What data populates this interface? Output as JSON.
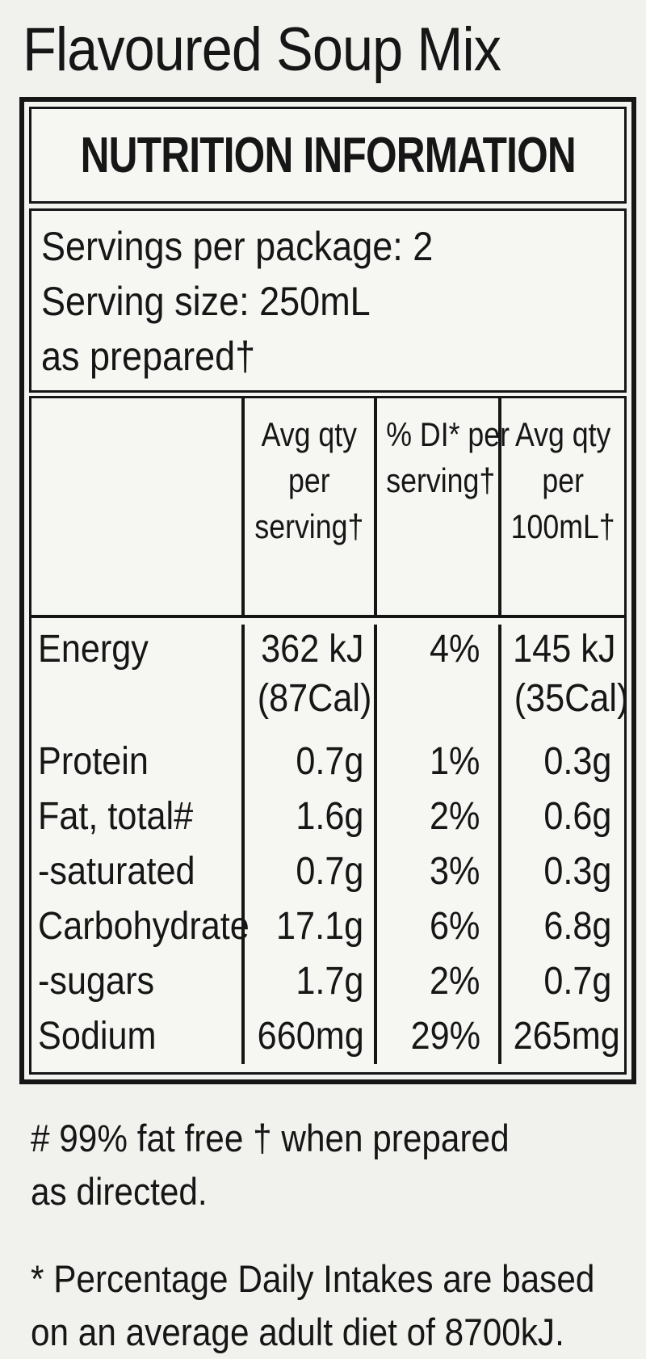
{
  "title": "Flavoured Soup Mix",
  "panel": {
    "header": "NUTRITION INFORMATION",
    "servings_lines": [
      "Servings per package: 2",
      "Serving size: 250mL",
      "as prepared†"
    ],
    "col_headers": {
      "qty_serving": [
        "Avg qty",
        "per",
        "serving†"
      ],
      "di_serving": [
        "% DI* per",
        "serving†"
      ],
      "qty_100ml": [
        "Avg qty",
        "per",
        "100mL†"
      ]
    },
    "rows": [
      {
        "name": "Energy",
        "qty_serving": "362 kJ",
        "qty_serving_2": "(87Cal)",
        "di": "4%",
        "qty_100ml": "145 kJ",
        "qty_100ml_2": "(35Cal)"
      },
      {
        "name": "Protein",
        "qty_serving": "0.7g",
        "di": "1%",
        "qty_100ml": "0.3g"
      },
      {
        "name": "Fat, total#",
        "qty_serving": "1.6g",
        "di": "2%",
        "qty_100ml": "0.6g"
      },
      {
        "name": "-saturated",
        "qty_serving": "0.7g",
        "di": "3%",
        "qty_100ml": "0.3g"
      },
      {
        "name": "Carbohydrate",
        "qty_serving": "17.1g",
        "di": "6%",
        "qty_100ml": "6.8g"
      },
      {
        "name": "-sugars",
        "qty_serving": "1.7g",
        "di": "2%",
        "qty_100ml": "0.7g"
      },
      {
        "name": "Sodium",
        "qty_serving": "660mg",
        "di": "29%",
        "qty_100ml": "265mg"
      }
    ],
    "footnote_fat_free": [
      "# 99% fat free † when prepared",
      "as directed."
    ],
    "footnote_daily_intake": [
      "* Percentage Daily Intakes are based",
      "on an average adult diet of 8700kJ."
    ]
  },
  "colors": {
    "text": "#161616",
    "border": "#161616",
    "background": "#f1f1ee",
    "panel_background": "#f6f6f3"
  }
}
